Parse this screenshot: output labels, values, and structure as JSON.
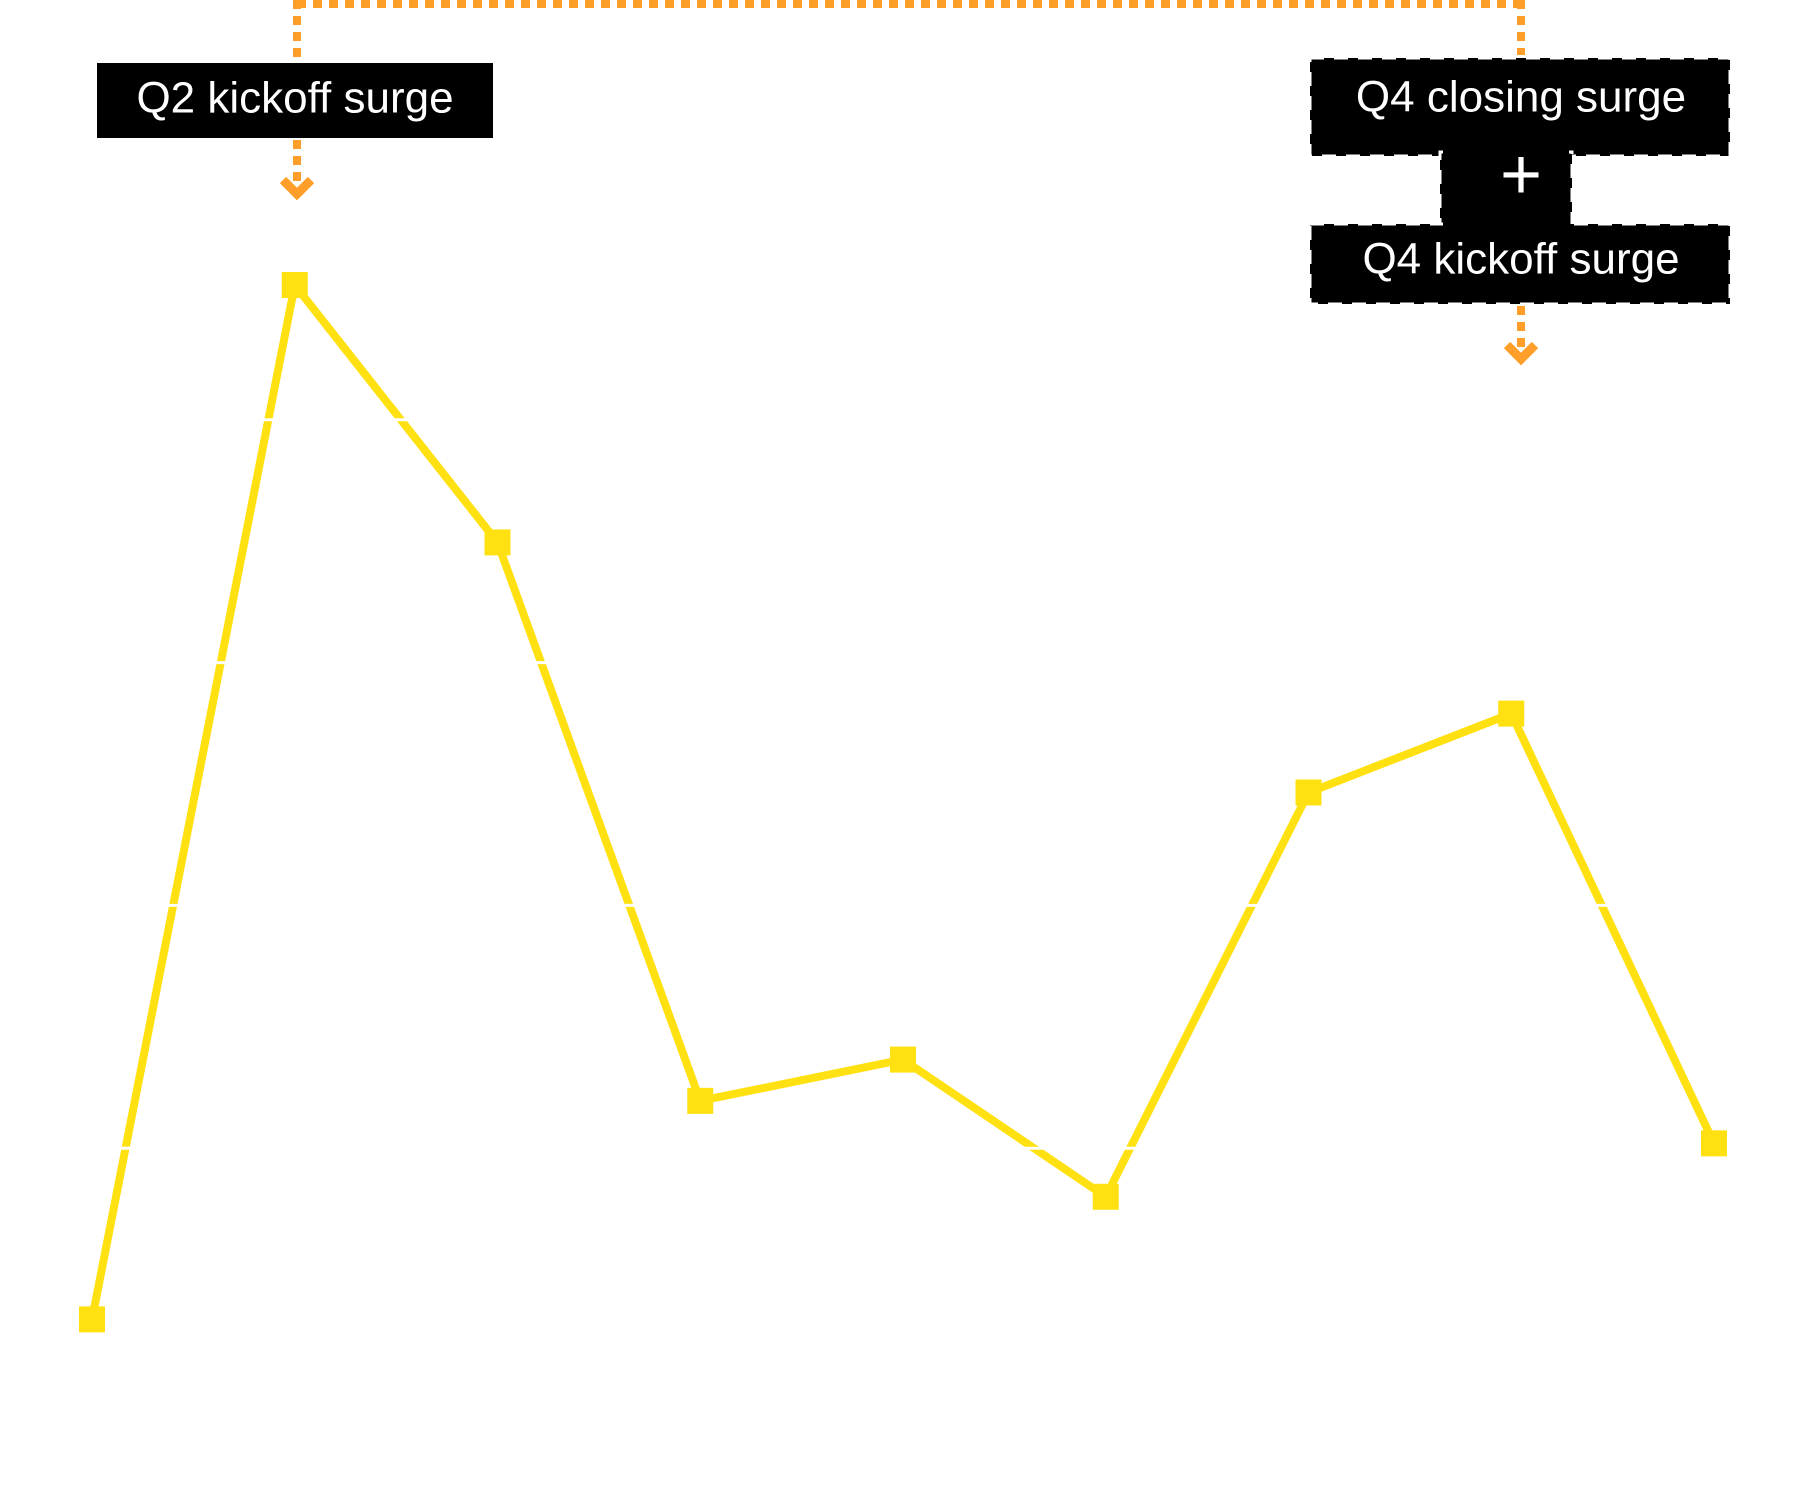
{
  "chart_data": {
    "type": "line",
    "title": "",
    "xlabel": "",
    "ylabel": "",
    "x": [
      1,
      2,
      3,
      4,
      5,
      6,
      7,
      8,
      9
    ],
    "series": [
      {
        "values": [
          5.9,
          91.1,
          69.9,
          23.9,
          27.3,
          16.0,
          49.3,
          55.8,
          20.4
        ],
        "color": "#FFE010",
        "marker": "square"
      }
    ],
    "ylim": [
      0,
      100
    ],
    "grid": "horizontal, white",
    "gridlines": [
      20,
      40,
      60,
      80
    ],
    "legend": "none",
    "annotations": [
      {
        "text": "Q2 kickoff surge",
        "target_index": 1,
        "style": "solid-box"
      },
      {
        "text": "Q4 closing surge",
        "target_index": 7,
        "style": "dashed-box"
      },
      {
        "text": "Q4 kickoff surge",
        "target_index": 7,
        "style": "dashed-box"
      }
    ],
    "combine_symbol": "+",
    "connector_color": "#FF9F2A",
    "annotation_bg": "#000000"
  }
}
